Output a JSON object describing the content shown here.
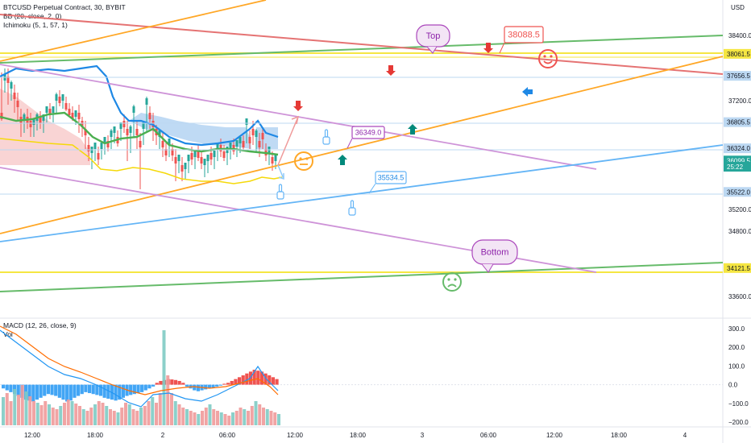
{
  "legend": {
    "symbol": "BTCUSD Perpetual Contract, 30, BYBIT",
    "bb": "BB (20, close, 2, 0)",
    "ichimoku": "Ichimoku (5, 1, 57, 1)",
    "macd": "MACD (12, 26, close, 9)",
    "vol": "Vol"
  },
  "axis": {
    "currency": "USD",
    "price_ticks": [
      {
        "label": "38400.0",
        "value": 38400
      },
      {
        "label": "37200.0",
        "value": 37200
      },
      {
        "label": "35200.0",
        "value": 35200
      },
      {
        "label": "34800.0",
        "value": 34800
      },
      {
        "label": "33600.0",
        "value": 33600
      }
    ],
    "macd_ticks": [
      {
        "label": "300.0",
        "value": 300
      },
      {
        "label": "200.0",
        "value": 200
      },
      {
        "label": "100.0",
        "value": 100
      },
      {
        "label": "0.0",
        "value": 0
      },
      {
        "label": "−100.0",
        "value": -100
      },
      {
        "label": "−200.0",
        "value": -200
      }
    ],
    "time_ticks": [
      "12:00",
      "18:00",
      "2",
      "06:00",
      "12:00",
      "18:00",
      "3",
      "06:00",
      "12:00",
      "18:00",
      "4"
    ]
  },
  "price_tags": [
    {
      "label": "38061.5",
      "value": 38061.5,
      "color": "#f5e642",
      "text_color": "#131722"
    },
    {
      "label": "37656.5",
      "value": 37656.5,
      "color": "#bcd8f2",
      "text_color": "#131722"
    },
    {
      "label": "36805.5",
      "value": 36805.5,
      "color": "#bcd8f2",
      "text_color": "#131722"
    },
    {
      "label": "36324.0",
      "value": 36324,
      "color": "#bcd8f2",
      "text_color": "#131722"
    },
    {
      "label": "36099.5",
      "value": 36099.5,
      "color": "#26a69a",
      "text_color": "#ffffff"
    },
    {
      "label": "25:22",
      "value": 35985,
      "color": "#26a69a",
      "text_color": "#ffffff"
    },
    {
      "label": "35522.0",
      "value": 35522,
      "color": "#bcd8f2",
      "text_color": "#131722"
    },
    {
      "label": "34121.5",
      "value": 34121.5,
      "color": "#f5e642",
      "text_color": "#131722"
    }
  ],
  "annotations": {
    "top_label": "Top",
    "bottom_label": "Bottom",
    "price_38088": "38088.5",
    "price_36349": "36349.0",
    "price_35534": "35534.5"
  },
  "colors": {
    "up": "#26a69a",
    "down": "#ef5350",
    "bb_basis": "#4caf50",
    "tenkan": "#1e88e5",
    "kijun": "#f5d90a",
    "macd_line": "#2196f3",
    "signal_line": "#ff6d00",
    "yellow_line": "#f5e642",
    "green_line": "#66bb6a",
    "orange_line": "#ffa726",
    "red_line": "#e57373",
    "violet_line": "#ce93d8",
    "blue_line": "#64b5f6"
  }
}
